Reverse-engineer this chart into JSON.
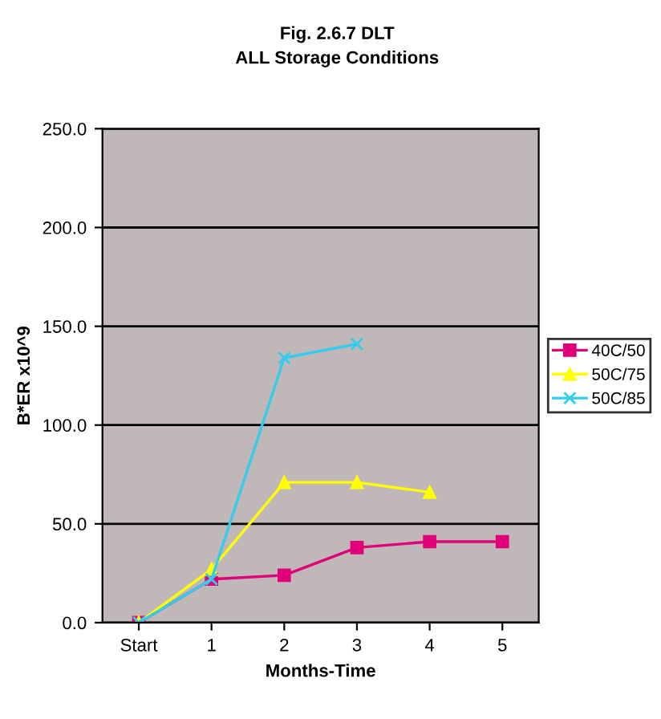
{
  "chart_data": {
    "type": "line",
    "title": "Fig. 2.6.7 DLT",
    "subtitle": "ALL Storage Conditions",
    "xlabel": "Months-Time",
    "ylabel": "B*ER x10^9",
    "categories": [
      "Start",
      "1",
      "2",
      "3",
      "4",
      "5"
    ],
    "series": [
      {
        "name": "40C/50",
        "color": "#e0007a",
        "marker": "square",
        "values": [
          0,
          22,
          24,
          38,
          41,
          41
        ]
      },
      {
        "name": "50C/75",
        "color": "#ffff00",
        "marker": "triangle",
        "values": [
          0,
          27,
          71,
          71,
          66,
          null
        ]
      },
      {
        "name": "50C/85",
        "color": "#33ccee",
        "marker": "cross",
        "values": [
          0,
          22,
          134,
          141,
          null,
          null
        ]
      }
    ],
    "ylim": [
      0,
      250
    ],
    "yticks": [
      {
        "value": 0,
        "label": "0.0"
      },
      {
        "value": 50,
        "label": "50.0"
      },
      {
        "value": 100,
        "label": "100.0"
      },
      {
        "value": 150,
        "label": "150.0"
      },
      {
        "value": 200,
        "label": "200.0"
      },
      {
        "value": 250,
        "label": "250.0"
      }
    ],
    "grid": "y",
    "legend": "right",
    "line_style": "solid"
  }
}
